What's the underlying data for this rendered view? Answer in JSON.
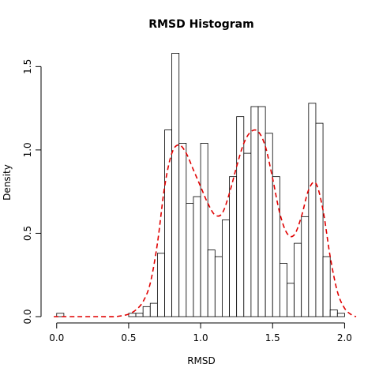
{
  "chart_data": {
    "type": "bar",
    "title": "RMSD Histogram",
    "xlabel": "RMSD",
    "ylabel": "Density",
    "xlim": [
      -0.07,
      2.08
    ],
    "ylim": [
      0,
      1.62
    ],
    "x_ticks": [
      0.0,
      0.5,
      1.0,
      1.5,
      2.0
    ],
    "x_tick_labels": [
      "0.0",
      "0.5",
      "1.0",
      "1.5",
      "2.0"
    ],
    "y_ticks": [
      0.0,
      0.5,
      1.0,
      1.5
    ],
    "y_tick_labels": [
      "0.0",
      "0.5",
      "1.0",
      "1.5"
    ],
    "grid": false,
    "legend": "none",
    "histogram": {
      "bin_width": 0.05,
      "bins": [
        {
          "start": 0.0,
          "density": 0.02
        },
        {
          "start": 0.5,
          "density": 0.02
        },
        {
          "start": 0.55,
          "density": 0.02
        },
        {
          "start": 0.6,
          "density": 0.06
        },
        {
          "start": 0.65,
          "density": 0.08
        },
        {
          "start": 0.7,
          "density": 0.38
        },
        {
          "start": 0.75,
          "density": 1.12
        },
        {
          "start": 0.8,
          "density": 1.58
        },
        {
          "start": 0.85,
          "density": 1.04
        },
        {
          "start": 0.9,
          "density": 0.68
        },
        {
          "start": 0.95,
          "density": 0.72
        },
        {
          "start": 1.0,
          "density": 1.04
        },
        {
          "start": 1.05,
          "density": 0.4
        },
        {
          "start": 1.1,
          "density": 0.36
        },
        {
          "start": 1.15,
          "density": 0.58
        },
        {
          "start": 1.2,
          "density": 0.84
        },
        {
          "start": 1.25,
          "density": 1.2
        },
        {
          "start": 1.3,
          "density": 0.98
        },
        {
          "start": 1.35,
          "density": 1.26
        },
        {
          "start": 1.4,
          "density": 1.26
        },
        {
          "start": 1.45,
          "density": 1.1
        },
        {
          "start": 1.5,
          "density": 0.84
        },
        {
          "start": 1.55,
          "density": 0.32
        },
        {
          "start": 1.6,
          "density": 0.2
        },
        {
          "start": 1.65,
          "density": 0.44
        },
        {
          "start": 1.7,
          "density": 0.6
        },
        {
          "start": 1.75,
          "density": 1.28
        },
        {
          "start": 1.8,
          "density": 1.16
        },
        {
          "start": 1.85,
          "density": 0.36
        },
        {
          "start": 1.9,
          "density": 0.04
        },
        {
          "start": 1.95,
          "density": 0.02
        }
      ]
    },
    "density_curve": {
      "color": "#e00000",
      "style": "dashed",
      "points": [
        [
          -0.02,
          0.0
        ],
        [
          0.1,
          0.0
        ],
        [
          0.2,
          0.0
        ],
        [
          0.3,
          0.0
        ],
        [
          0.4,
          0.0
        ],
        [
          0.45,
          0.005
        ],
        [
          0.5,
          0.015
        ],
        [
          0.55,
          0.04
        ],
        [
          0.6,
          0.09
        ],
        [
          0.65,
          0.2
        ],
        [
          0.7,
          0.44
        ],
        [
          0.75,
          0.78
        ],
        [
          0.8,
          0.98
        ],
        [
          0.85,
          1.03
        ],
        [
          0.9,
          0.98
        ],
        [
          0.95,
          0.88
        ],
        [
          1.0,
          0.78
        ],
        [
          1.05,
          0.68
        ],
        [
          1.1,
          0.61
        ],
        [
          1.15,
          0.62
        ],
        [
          1.2,
          0.74
        ],
        [
          1.25,
          0.9
        ],
        [
          1.3,
          1.04
        ],
        [
          1.35,
          1.11
        ],
        [
          1.4,
          1.11
        ],
        [
          1.45,
          1.02
        ],
        [
          1.5,
          0.83
        ],
        [
          1.55,
          0.62
        ],
        [
          1.6,
          0.5
        ],
        [
          1.65,
          0.49
        ],
        [
          1.7,
          0.6
        ],
        [
          1.75,
          0.76
        ],
        [
          1.8,
          0.8
        ],
        [
          1.85,
          0.64
        ],
        [
          1.9,
          0.36
        ],
        [
          1.95,
          0.15
        ],
        [
          2.0,
          0.05
        ],
        [
          2.05,
          0.01
        ],
        [
          2.08,
          0.0
        ]
      ]
    }
  }
}
